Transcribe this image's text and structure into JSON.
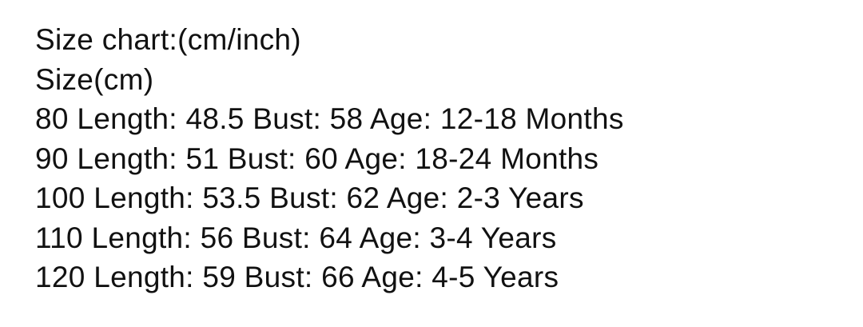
{
  "title": "Size chart:(cm/inch)",
  "subtitle": "Size(cm)",
  "rows": [
    "80 Length: 48.5 Bust: 58 Age: 12-18 Months",
    "90 Length: 51 Bust: 60 Age: 18-24 Months",
    "100 Length: 53.5 Bust: 62 Age: 2-3 Years",
    "110 Length: 56 Bust: 64 Age: 3-4 Years",
    "120 Length: 59 Bust: 66 Age: 4-5 Years"
  ]
}
